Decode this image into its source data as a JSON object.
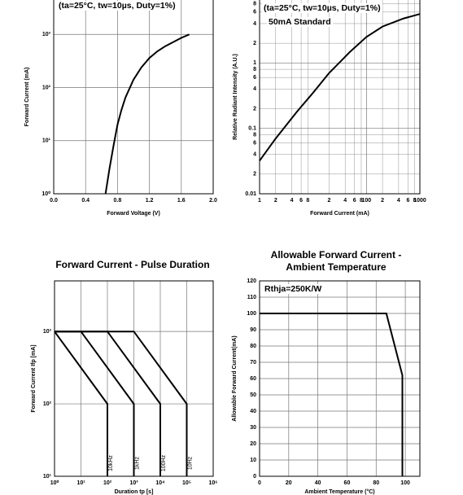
{
  "chart_data": [
    {
      "type": "line",
      "annotations": [
        "(ta=25°C, tw=10µs, Duty=1%)"
      ],
      "x_label": "Forward Voltage (V)",
      "y_label": "Forward Current (mA)",
      "xscale": "linear",
      "yscale": "log",
      "grid": true,
      "xlim": [
        0,
        2
      ],
      "ylim": [
        1,
        10000
      ],
      "xticks": [
        {
          "value": 0,
          "label": "0.0"
        },
        0.4,
        0.8,
        1.2,
        1.6,
        {
          "value": 2,
          "label": "2.0"
        }
      ],
      "yticks": [
        {
          "value": 1,
          "label": "10⁰"
        },
        {
          "value": 10,
          "label": "10¹"
        },
        {
          "value": 100,
          "label": "10²"
        },
        {
          "value": 1000,
          "label": "10³"
        }
      ],
      "series": [
        {
          "color": "#000000",
          "x": [
            0.65,
            0.7,
            0.75,
            0.8,
            0.85,
            0.9,
            1.0,
            1.1,
            1.2,
            1.3,
            1.4,
            1.5,
            1.6,
            1.7
          ],
          "values": [
            1,
            3,
            8,
            20,
            38,
            65,
            140,
            240,
            360,
            480,
            600,
            720,
            860,
            1000
          ]
        }
      ]
    },
    {
      "type": "line",
      "annotations": [
        "(ta=25°C, tw=10µs, Duty=1%)",
        "50mA Standard"
      ],
      "x_label": "Forward Current (mA)",
      "y_label": "Relative Radiant Intensity (A.U.)",
      "xscale": "log",
      "yscale": "log",
      "grid": true,
      "xlim": [
        1,
        1000
      ],
      "ylim": [
        0.01,
        10
      ],
      "xticks": [
        1,
        2,
        4,
        6,
        8,
        {
          "value": 20,
          "label": "2"
        },
        {
          "value": 40,
          "label": "4"
        },
        {
          "value": 60,
          "label": "6"
        },
        {
          "value": 80,
          "label": "8"
        },
        100,
        {
          "value": 200,
          "label": "2"
        },
        {
          "value": 400,
          "label": "4"
        },
        {
          "value": 600,
          "label": "6"
        },
        {
          "value": 800,
          "label": "8"
        },
        1000
      ],
      "yticks": [
        0.01,
        {
          "value": 0.02,
          "label": "2"
        },
        {
          "value": 0.04,
          "label": "4"
        },
        {
          "value": 0.06,
          "label": "6"
        },
        {
          "value": 0.08,
          "label": "8"
        },
        0.1,
        {
          "value": 0.2,
          "label": "2"
        },
        {
          "value": 0.4,
          "label": "4"
        },
        {
          "value": 0.6,
          "label": "6"
        },
        {
          "value": 0.8,
          "label": "8"
        },
        1,
        2,
        4,
        6,
        8
      ],
      "series": [
        {
          "color": "#000000",
          "x": [
            1,
            2,
            5,
            10,
            20,
            50,
            100,
            200,
            500,
            1000
          ],
          "values": [
            0.032,
            0.07,
            0.18,
            0.35,
            0.7,
            1.5,
            2.5,
            3.6,
            4.8,
            5.6
          ]
        }
      ]
    },
    {
      "type": "line",
      "title": "Forward Current - Pulse Duration",
      "x_label": "Duration tp [s]",
      "y_label": "Forward Current Ifp [mA]",
      "xscale": "log",
      "yscale": "log",
      "grid": true,
      "xlim": [
        1,
        1000000
      ],
      "ylim": [
        10,
        5000
      ],
      "xticks": [
        {
          "value": 1,
          "label": "10⁰"
        },
        {
          "value": 10,
          "label": "10¹"
        },
        {
          "value": 100,
          "label": "10²"
        },
        {
          "value": 1000,
          "label": "10³"
        },
        {
          "value": 10000,
          "label": "10⁴"
        },
        {
          "value": 100000,
          "label": "10⁵"
        },
        {
          "value": 1000000,
          "label": "10⁶"
        }
      ],
      "yticks": [
        {
          "value": 10,
          "label": "10¹"
        },
        {
          "value": 100,
          "label": "10²"
        },
        {
          "value": 1000,
          "label": "10³"
        }
      ],
      "series": [
        {
          "name": "10kHz",
          "color": "#000000",
          "x": [
            1,
            100,
            100
          ],
          "values": [
            1000,
            100,
            10
          ]
        },
        {
          "name": "1kHz",
          "color": "#000000",
          "x": [
            1,
            10,
            1000,
            1000
          ],
          "values": [
            1000,
            1000,
            100,
            10
          ]
        },
        {
          "name": "100Hz",
          "color": "#000000",
          "x": [
            1,
            100,
            10000,
            10000
          ],
          "values": [
            1000,
            1000,
            100,
            10
          ]
        },
        {
          "name": "10Hz",
          "color": "#000000",
          "x": [
            1,
            1000,
            100000,
            100000
          ],
          "values": [
            1000,
            1000,
            100,
            10
          ]
        }
      ]
    },
    {
      "type": "line",
      "title": "Allowable Forward Current - Ambient Temperature",
      "annotations": [
        "Rthja=250K/W"
      ],
      "x_label": "Ambient Temperature (°C)",
      "y_label": "Allowable Forward Current(mA)",
      "xscale": "linear",
      "yscale": "linear",
      "grid": true,
      "xlim": [
        0,
        110
      ],
      "ylim": [
        0,
        120
      ],
      "xticks": [
        0,
        20,
        40,
        60,
        80,
        100
      ],
      "yticks": [
        0,
        10,
        20,
        30,
        40,
        50,
        60,
        70,
        80,
        90,
        100,
        110,
        120
      ],
      "series": [
        {
          "color": "#000000",
          "x": [
            0,
            87,
            98,
            98
          ],
          "values": [
            100,
            100,
            62,
            0
          ]
        }
      ]
    }
  ]
}
